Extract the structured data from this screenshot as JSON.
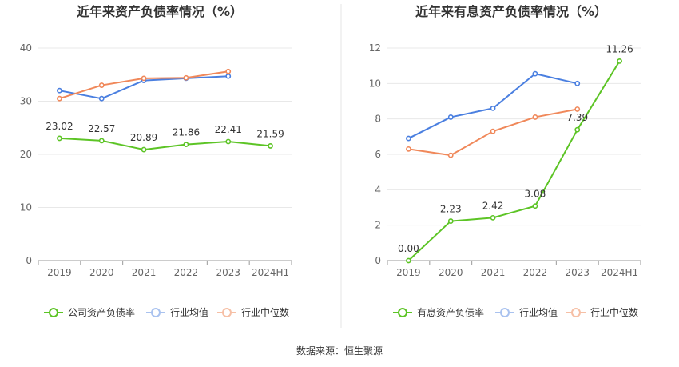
{
  "source_label": "数据来源：恒生聚源",
  "chart_data": [
    {
      "type": "line",
      "title": "近年来资产负债率情况（%）",
      "categories": [
        "2019",
        "2020",
        "2021",
        "2022",
        "2023",
        "2024H1"
      ],
      "ylim": [
        0,
        40
      ],
      "yticks": [
        0,
        10,
        20,
        30,
        40
      ],
      "grid": true,
      "legend_position": "bottom",
      "series": [
        {
          "name": "公司资产负债率",
          "color": "#5cc425",
          "values": [
            23.02,
            22.57,
            20.89,
            21.86,
            22.41,
            21.59
          ],
          "labels": [
            "23.02",
            "22.57",
            "20.89",
            "21.86",
            "22.41",
            "21.59"
          ]
        },
        {
          "name": "行业均值",
          "color": "#4a7fe0",
          "values": [
            32.0,
            30.5,
            33.9,
            34.3,
            34.7,
            null
          ]
        },
        {
          "name": "行业中位数",
          "color": "#f0885a",
          "values": [
            30.5,
            33.0,
            34.3,
            34.4,
            35.6,
            null
          ]
        }
      ]
    },
    {
      "type": "line",
      "title": "近年来有息资产负债率情况（%）",
      "categories": [
        "2019",
        "2020",
        "2021",
        "2022",
        "2023",
        "2024H1"
      ],
      "ylim": [
        0,
        12
      ],
      "yticks": [
        0,
        2,
        4,
        6,
        8,
        10,
        12
      ],
      "grid": true,
      "legend_position": "bottom",
      "series": [
        {
          "name": "有息资产负债率",
          "color": "#5cc425",
          "values": [
            0.0,
            2.23,
            2.42,
            3.08,
            7.39,
            11.26
          ],
          "labels": [
            "0.00",
            "2.23",
            "2.42",
            "3.08",
            "7.39",
            "11.26"
          ]
        },
        {
          "name": "行业均值",
          "color": "#4a7fe0",
          "values": [
            6.9,
            8.1,
            8.6,
            10.55,
            10.0,
            null
          ]
        },
        {
          "name": "行业中位数",
          "color": "#f0885a",
          "values": [
            6.3,
            5.95,
            7.3,
            8.1,
            8.55,
            null
          ]
        }
      ]
    }
  ]
}
